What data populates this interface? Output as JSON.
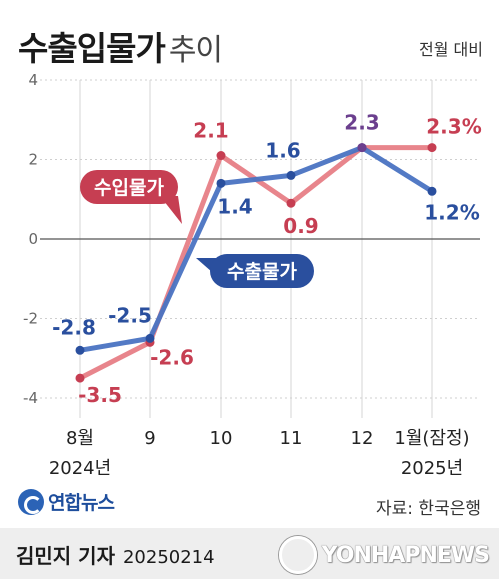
{
  "title": {
    "main": "수출입물가",
    "sub": "추이"
  },
  "unit_label": "전월 대비",
  "chart_data": {
    "type": "line",
    "categories": [
      "8월\n2024년",
      "9",
      "10",
      "11",
      "12",
      "1월(잠정)\n2025년"
    ],
    "y_ticks": [
      "4",
      "2",
      "0",
      "-2",
      "-4"
    ],
    "ylim": [
      -4,
      4
    ],
    "grid": true,
    "series": [
      {
        "name": "수출물가",
        "color": "#4a73c2",
        "point_color": "#2a4f9e",
        "label_color": "#2a4f9e",
        "values": [
          -2.8,
          -2.5,
          1.4,
          1.6,
          2.3,
          1.2
        ],
        "labels": [
          "-2.8",
          "-2.5",
          "1.4",
          "1.6",
          "2.3",
          "1.2%"
        ]
      },
      {
        "name": "수입물가",
        "color": "#e77e86",
        "point_color": "#c63e52",
        "label_color": "#c63e52",
        "values": [
          -3.5,
          -2.6,
          2.1,
          0.9,
          2.3,
          2.3
        ],
        "labels": [
          "-3.5",
          "-2.6",
          "2.1",
          "0.9",
          "2.3",
          "2.3%"
        ]
      }
    ],
    "shared_point_color": "#6b3f8e"
  },
  "footer": {
    "agency": "연합뉴스",
    "source": "자료: 한국은행",
    "author": "김민지 기자",
    "date": "20250214",
    "watermark": "YONHAPNEWS"
  }
}
